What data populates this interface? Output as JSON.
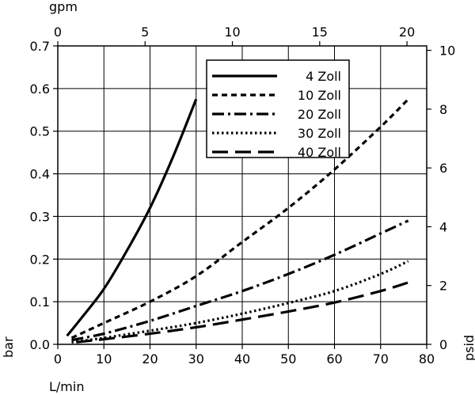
{
  "chart_data": {
    "type": "line",
    "x_bottom": {
      "label": "L/min",
      "ticks": [
        0,
        10,
        20,
        30,
        40,
        50,
        60,
        70,
        80
      ],
      "range": [
        0,
        80
      ]
    },
    "x_top": {
      "label": "gpm",
      "ticks": [
        0,
        5,
        10,
        15,
        20
      ],
      "range": [
        0,
        21.13
      ]
    },
    "y_left": {
      "label": "bar",
      "ticks": [
        "0.0",
        "0.1",
        "0.2",
        "0.3",
        "0.4",
        "0.5",
        "0.6",
        "0.7"
      ],
      "range": [
        0,
        0.7
      ]
    },
    "y_right": {
      "label": "psid",
      "ticks": [
        0,
        2,
        4,
        6,
        8,
        10
      ],
      "range": [
        0,
        10.15
      ]
    },
    "grid": true,
    "legend_position": "top-right",
    "series": [
      {
        "name": "4 Zoll",
        "style": "solid",
        "x": [
          2,
          5,
          10,
          15,
          20,
          25,
          30
        ],
        "y": [
          0.02,
          0.06,
          0.13,
          0.22,
          0.32,
          0.44,
          0.575
        ]
      },
      {
        "name": "10 Zoll",
        "style": "dashed",
        "x": [
          3,
          10,
          20,
          30,
          40,
          50,
          60,
          70,
          76
        ],
        "y": [
          0.015,
          0.05,
          0.1,
          0.16,
          0.24,
          0.32,
          0.41,
          0.51,
          0.575
        ]
      },
      {
        "name": "20 Zoll",
        "style": "dash-dot",
        "x": [
          3,
          10,
          20,
          30,
          40,
          50,
          60,
          70,
          76
        ],
        "y": [
          0.01,
          0.025,
          0.055,
          0.09,
          0.125,
          0.165,
          0.21,
          0.26,
          0.29
        ]
      },
      {
        "name": "30 Zoll",
        "style": "dotted",
        "x": [
          3,
          10,
          20,
          30,
          40,
          50,
          60,
          70,
          76
        ],
        "y": [
          0.005,
          0.015,
          0.032,
          0.05,
          0.072,
          0.097,
          0.125,
          0.165,
          0.195
        ]
      },
      {
        "name": "40 Zoll",
        "style": "long-dash",
        "x": [
          4,
          10,
          20,
          30,
          40,
          50,
          60,
          70,
          76
        ],
        "y": [
          0.005,
          0.012,
          0.025,
          0.04,
          0.058,
          0.077,
          0.098,
          0.125,
          0.145
        ]
      }
    ]
  }
}
